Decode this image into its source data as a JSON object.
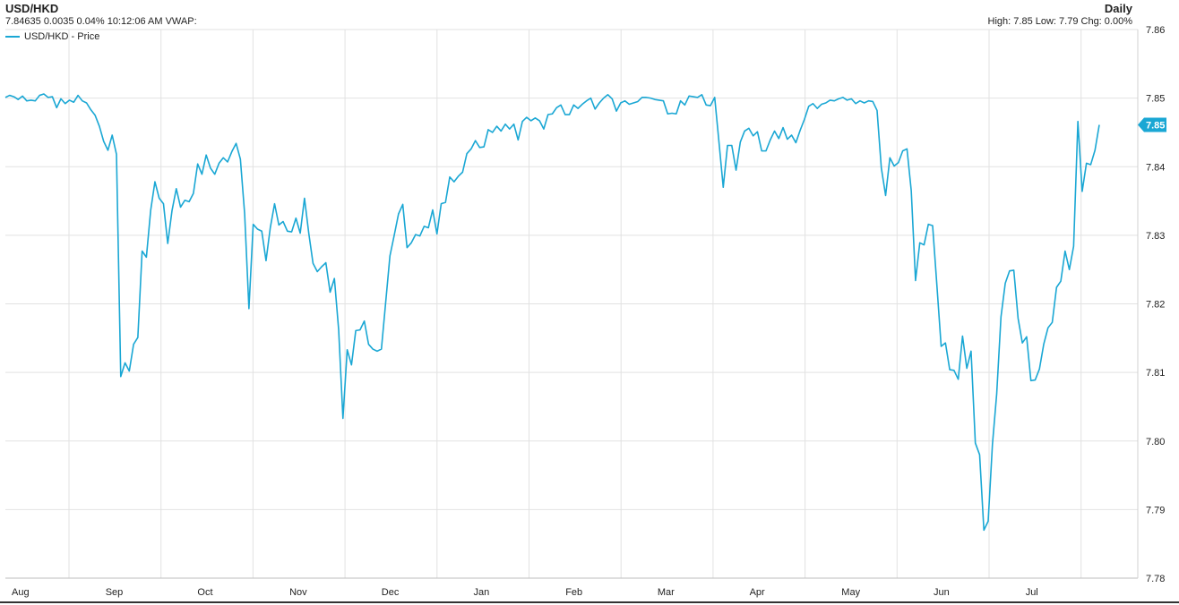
{
  "header": {
    "title": "USD/HKD",
    "quote_line": "7.84635 0.0035 0.04% 10:12:06 AM VWAP:",
    "period": "Daily",
    "stats_line": "High: 7.85 Low: 7.79 Chg: 0.00%"
  },
  "colors": {
    "line": "#1aa7d4",
    "grid": "#e2e2e2",
    "label_bg": "#1aa7d4"
  },
  "chart_data": {
    "type": "line",
    "title": "USD/HKD",
    "xlabel": "",
    "ylabel": "",
    "ylim": [
      7.78,
      7.86
    ],
    "yticks": [
      "7.86",
      "7.85",
      "7.84",
      "7.83",
      "7.82",
      "7.81",
      "7.80",
      "7.79",
      "7.78"
    ],
    "xticks": [
      "Aug",
      "Sep",
      "Oct",
      "Nov",
      "Dec",
      "Jan",
      "Feb",
      "Mar",
      "Apr",
      "May",
      "Jun",
      "Jul"
    ],
    "legend": "top-left",
    "grid": true,
    "last_value_label": "7.85",
    "series": [
      {
        "name": "USD/HKD - Price",
        "values": [
          7.8501,
          7.8504,
          7.8502,
          7.8498,
          7.8503,
          7.8496,
          7.8497,
          7.8496,
          7.8504,
          7.8506,
          7.8501,
          7.8502,
          7.8486,
          7.8499,
          7.8492,
          7.8497,
          7.8494,
          7.8504,
          7.8496,
          7.8493,
          7.8483,
          7.8475,
          7.8459,
          7.8437,
          7.8424,
          7.8446,
          7.8418,
          7.8094,
          7.8114,
          7.8102,
          7.8141,
          7.8151,
          7.8277,
          7.8268,
          7.8336,
          7.8378,
          7.8354,
          7.8346,
          7.8288,
          7.8336,
          7.8368,
          7.8341,
          7.8351,
          7.8349,
          7.8361,
          7.8404,
          7.8389,
          7.8417,
          7.8398,
          7.8389,
          7.8405,
          7.8413,
          7.8407,
          7.8422,
          7.8434,
          7.8411,
          7.8331,
          7.8193,
          7.8316,
          7.8309,
          7.8306,
          7.8263,
          7.8311,
          7.8346,
          7.8315,
          7.832,
          7.8306,
          7.8305,
          7.8325,
          7.8303,
          7.8354,
          7.8303,
          7.8259,
          7.8247,
          7.8254,
          7.826,
          7.8217,
          7.8237,
          7.8162,
          7.8033,
          7.8133,
          7.8111,
          7.8161,
          7.8162,
          7.8175,
          7.8141,
          7.8134,
          7.8131,
          7.8134,
          7.8202,
          7.827,
          7.83,
          7.8331,
          7.8345,
          7.8282,
          7.8289,
          7.8301,
          7.8299,
          7.8313,
          7.8311,
          7.8337,
          7.8302,
          7.8346,
          7.8348,
          7.8385,
          7.8378,
          7.8386,
          7.8392,
          7.8419,
          7.8426,
          7.8438,
          7.8428,
          7.8429,
          7.8454,
          7.845,
          7.8459,
          7.8452,
          7.8462,
          7.8455,
          7.8462,
          7.8439,
          7.8466,
          7.8472,
          7.8467,
          7.8471,
          7.8467,
          7.8455,
          7.8476,
          7.8477,
          7.8486,
          7.849,
          7.8476,
          7.8476,
          7.849,
          7.8485,
          7.8491,
          7.8496,
          7.85,
          7.8484,
          7.8493,
          7.85,
          7.8505,
          7.8499,
          7.8481,
          7.8493,
          7.8496,
          7.8491,
          7.8493,
          7.8495,
          7.8501,
          7.8501,
          7.85,
          7.8498,
          7.8497,
          7.8496,
          7.8477,
          7.8478,
          7.8477,
          7.8496,
          7.849,
          7.8503,
          7.8502,
          7.8501,
          7.8505,
          7.849,
          7.8489,
          7.8501,
          7.8436,
          7.837,
          7.8431,
          7.8431,
          7.8395,
          7.8436,
          7.8452,
          7.8456,
          7.8445,
          7.8451,
          7.8423,
          7.8423,
          7.8439,
          7.8452,
          7.8441,
          7.8457,
          7.844,
          7.8446,
          7.8435,
          7.8453,
          7.8469,
          7.8488,
          7.8492,
          7.8485,
          7.8491,
          7.8493,
          7.8497,
          7.8496,
          7.8499,
          7.8501,
          7.8497,
          7.8499,
          7.8492,
          7.8496,
          7.8493,
          7.8496,
          7.8495,
          7.8482,
          7.8398,
          7.8358,
          7.8413,
          7.8401,
          7.8406,
          7.8423,
          7.8426,
          7.8365,
          7.8234,
          7.8289,
          7.8286,
          7.8316,
          7.8314,
          7.8227,
          7.8138,
          7.8143,
          7.8104,
          7.8103,
          7.809,
          7.8153,
          7.8106,
          7.8131,
          7.7997,
          7.798,
          7.787,
          7.7883,
          7.7995,
          7.8069,
          7.8181,
          7.823,
          7.8248,
          7.8249,
          7.8179,
          7.8143,
          7.8152,
          7.8088,
          7.8089,
          7.8105,
          7.8141,
          7.8165,
          7.8173,
          7.8224,
          7.8233,
          7.8277,
          7.825,
          7.8284,
          7.8466,
          7.8364,
          7.8405,
          7.8403,
          7.8424,
          7.8461
        ]
      }
    ]
  }
}
